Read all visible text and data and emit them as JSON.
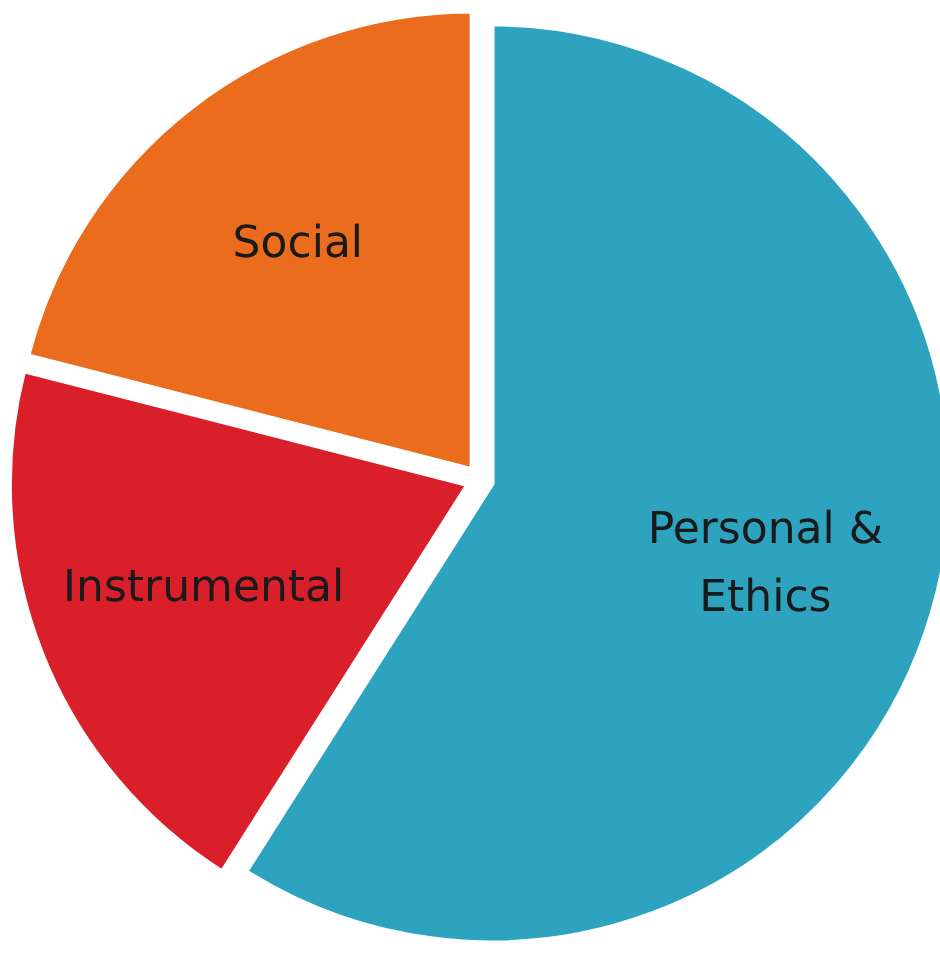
{
  "chart_data": {
    "type": "pie",
    "categories": [
      "Personal & Ethics",
      "Instrumental",
      "Social"
    ],
    "values": [
      59,
      20,
      21
    ],
    "colors": [
      "#2ea3c0",
      "#d81f2a",
      "#ec6c1e"
    ]
  }
}
